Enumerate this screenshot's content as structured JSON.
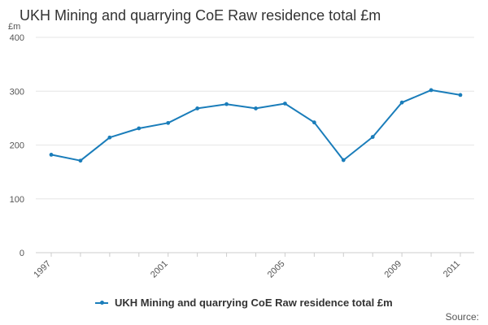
{
  "chart_data": {
    "type": "line",
    "title": "UKH Mining and quarrying CoE Raw residence total £m",
    "ylabel": "£m",
    "xlabel": "",
    "x": [
      "1997",
      "1998",
      "1999",
      "2000",
      "2001",
      "2002",
      "2003",
      "2004",
      "2005",
      "2006",
      "2007",
      "2008",
      "2009",
      "2010",
      "2011"
    ],
    "x_tick_labels": [
      "1997",
      "2001",
      "2005",
      "2009",
      "2011"
    ],
    "y_ticks": [
      "0",
      "100",
      "200",
      "300",
      "400"
    ],
    "ylim": [
      0,
      400
    ],
    "grid": true,
    "legend_position": "bottom",
    "series": [
      {
        "name": "UKH Mining and quarrying CoE Raw residence total £m",
        "color": "#1f77b4",
        "values": [
          182,
          171,
          214,
          231,
          241,
          268,
          276,
          268,
          277,
          242,
          172,
          215,
          279,
          302,
          293
        ]
      }
    ]
  },
  "footer": {
    "source": "Source:"
  },
  "colors": {
    "line": "#1a7dba",
    "grid": "#e6e6e6",
    "axis_text": "#555555"
  }
}
